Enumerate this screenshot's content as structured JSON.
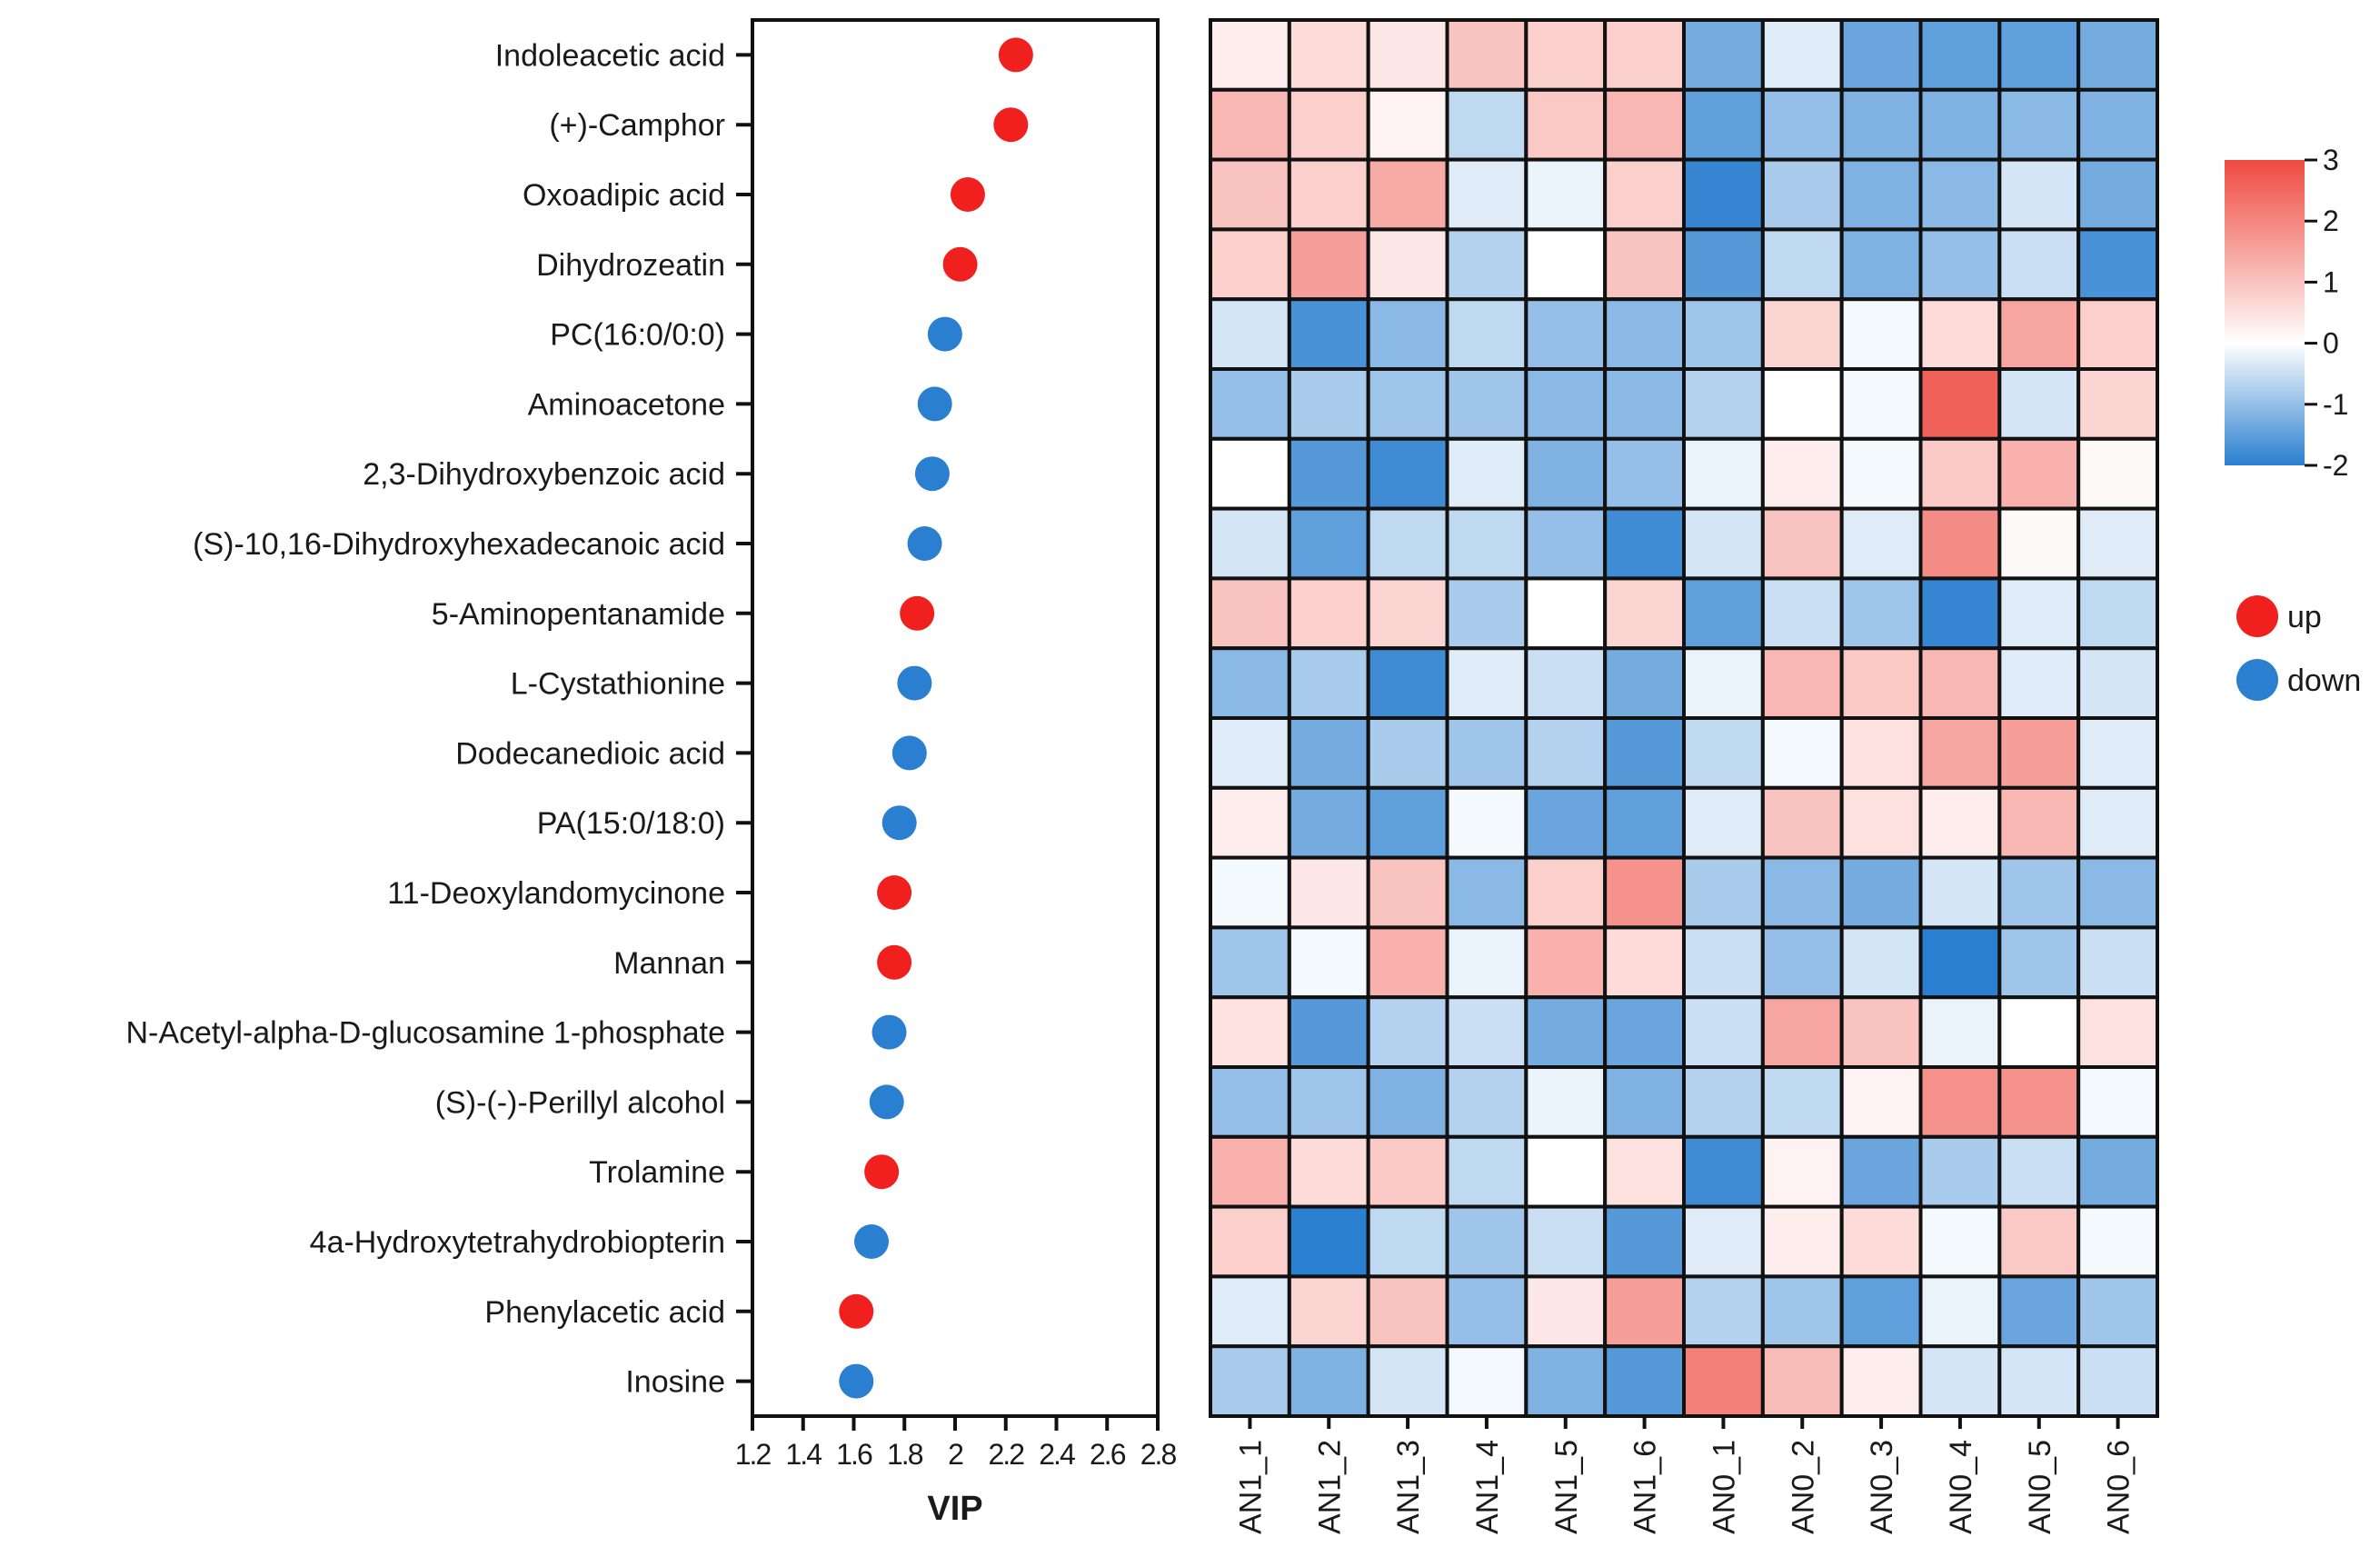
{
  "chart_data": [
    {
      "type": "scatter",
      "xlabel": "VIP",
      "ylabel": "",
      "xlim": [
        1.2,
        2.8
      ],
      "xticks": [
        "1.2",
        "1.4",
        "1.6",
        "1.8",
        "2",
        "2.2",
        "2.4",
        "2.6",
        "2.8"
      ],
      "metabolites": [
        "Indoleacetic acid",
        "(+)-Camphor",
        "Oxoadipic acid",
        "Dihydrozeatin",
        "PC(16:0/0:0)",
        "Aminoacetone",
        "2,3-Dihydroxybenzoic acid",
        "(S)-10,16-Dihydroxyhexadecanoic acid",
        "5-Aminopentanamide",
        "L-Cystathionine",
        "Dodecanedioic acid",
        "PA(15:0/18:0)",
        "11-Deoxylandomycinone",
        "Mannan",
        "N-Acetyl-alpha-D-glucosamine 1-phosphate",
        "(S)-(-)-Perillyl alcohol",
        "Trolamine",
        "4a-Hydroxytetrahydrobiopterin",
        "Phenylacetic acid",
        "Inosine"
      ],
      "vip": [
        2.24,
        2.22,
        2.05,
        2.02,
        1.96,
        1.92,
        1.91,
        1.88,
        1.85,
        1.84,
        1.82,
        1.78,
        1.76,
        1.76,
        1.74,
        1.73,
        1.71,
        1.67,
        1.61,
        1.61
      ],
      "regulation": [
        "up",
        "up",
        "up",
        "up",
        "down",
        "down",
        "down",
        "down",
        "up",
        "down",
        "down",
        "down",
        "up",
        "up",
        "down",
        "down",
        "up",
        "down",
        "up",
        "down"
      ],
      "legend": [
        {
          "label": "up",
          "color": "#f0201e"
        },
        {
          "label": "down",
          "color": "#2a7fd0"
        }
      ]
    },
    {
      "type": "heatmap",
      "columns": [
        "AN1_1",
        "AN1_2",
        "AN1_3",
        "AN1_4",
        "AN1_5",
        "AN1_6",
        "AN0_1",
        "AN0_2",
        "AN0_3",
        "AN0_4",
        "AN0_5",
        "AN0_6"
      ],
      "rows": [
        "Indoleacetic acid",
        "(+)-Camphor",
        "Oxoadipic acid",
        "Dihydrozeatin",
        "PC(16:0/0:0)",
        "Aminoacetone",
        "2,3-Dihydroxybenzoic acid",
        "(S)-10,16-Dihydroxyhexadecanoic acid",
        "5-Aminopentanamide",
        "L-Cystathionine",
        "Dodecanedioic acid",
        "PA(15:0/18:0)",
        "11-Deoxylandomycinone",
        "Mannan",
        "N-Acetyl-alpha-D-glucosamine 1-phosphate",
        "(S)-(-)-Perillyl alcohol",
        "Trolamine",
        "4a-Hydroxytetrahydrobiopterin",
        "Phenylacetic acid",
        "Inosine"
      ],
      "values": [
        [
          0.3,
          0.6,
          0.4,
          1.0,
          0.8,
          0.8,
          -1.3,
          -0.3,
          -1.4,
          -1.5,
          -1.5,
          -1.3
        ],
        [
          1.2,
          0.8,
          0.2,
          -0.6,
          0.9,
          1.2,
          -1.5,
          -1.0,
          -1.2,
          -1.2,
          -1.1,
          -1.2
        ],
        [
          1.0,
          0.8,
          1.4,
          -0.3,
          -0.2,
          0.8,
          -1.9,
          -0.8,
          -1.2,
          -1.1,
          -0.4,
          -1.3
        ],
        [
          0.8,
          1.6,
          0.4,
          -0.7,
          0.0,
          1.0,
          -1.6,
          -0.6,
          -1.2,
          -1.0,
          -0.5,
          -1.7
        ],
        [
          -0.4,
          -1.7,
          -1.1,
          -0.6,
          -1.0,
          -1.1,
          -0.9,
          0.7,
          -0.1,
          0.6,
          1.5,
          0.8
        ],
        [
          -1.0,
          -0.8,
          -0.9,
          -0.9,
          -1.1,
          -1.1,
          -0.7,
          0.0,
          -0.1,
          2.6,
          -0.4,
          0.7
        ],
        [
          0.0,
          -1.6,
          -1.8,
          -0.3,
          -1.2,
          -1.0,
          -0.2,
          0.3,
          -0.1,
          0.9,
          1.3,
          0.1
        ],
        [
          -0.4,
          -1.5,
          -0.6,
          -0.6,
          -1.0,
          -1.8,
          -0.4,
          1.0,
          -0.3,
          1.9,
          0.1,
          -0.3
        ],
        [
          1.0,
          0.8,
          0.7,
          -0.8,
          0.0,
          0.7,
          -1.5,
          -0.5,
          -0.9,
          -1.9,
          -0.3,
          -0.6
        ],
        [
          -1.1,
          -0.8,
          -1.8,
          -0.3,
          -0.5,
          -1.3,
          -0.2,
          1.2,
          0.9,
          1.2,
          -0.3,
          -0.4
        ],
        [
          -0.3,
          -1.3,
          -0.8,
          -0.9,
          -0.7,
          -1.6,
          -0.6,
          -0.1,
          0.5,
          1.5,
          1.6,
          -0.3
        ],
        [
          0.3,
          -1.3,
          -1.5,
          -0.1,
          -1.4,
          -1.5,
          -0.3,
          1.0,
          0.5,
          0.3,
          1.2,
          -0.3
        ],
        [
          -0.1,
          0.4,
          1.0,
          -1.1,
          0.8,
          1.8,
          -0.8,
          -1.1,
          -1.3,
          -0.4,
          -0.9,
          -1.1
        ],
        [
          -0.9,
          -0.1,
          1.3,
          -0.2,
          1.3,
          0.6,
          -0.5,
          -1.0,
          -0.4,
          -2.0,
          -0.9,
          -0.5
        ],
        [
          0.5,
          -1.6,
          -0.7,
          -0.5,
          -1.3,
          -1.4,
          -0.5,
          1.5,
          1.0,
          -0.2,
          0.0,
          0.5
        ],
        [
          -1.0,
          -0.9,
          -1.2,
          -0.7,
          -0.2,
          -1.2,
          -0.7,
          -0.6,
          0.2,
          1.8,
          1.8,
          -0.1
        ],
        [
          1.3,
          0.6,
          0.9,
          -0.6,
          0.0,
          0.5,
          -1.8,
          0.2,
          -1.4,
          -0.8,
          -0.5,
          -1.3
        ],
        [
          0.8,
          -2.0,
          -0.6,
          -0.9,
          -0.5,
          -1.6,
          -0.3,
          0.3,
          0.6,
          -0.1,
          0.9,
          -0.1
        ],
        [
          -0.3,
          0.7,
          1.0,
          -1.0,
          0.4,
          1.6,
          -0.7,
          -0.9,
          -1.5,
          -0.2,
          -1.4,
          -0.9
        ],
        [
          -0.8,
          -1.2,
          -0.4,
          -0.1,
          -1.2,
          -1.6,
          2.1,
          1.1,
          0.3,
          -0.4,
          -0.4,
          -0.5
        ]
      ],
      "scale": {
        "min": -2,
        "max": 3,
        "ticks": [
          "3",
          "2",
          "1",
          "0",
          "-1",
          "-2"
        ],
        "low_color": "#2a7fd0",
        "mid_color": "#ffffff",
        "high_color": "#ee4a40"
      }
    }
  ]
}
